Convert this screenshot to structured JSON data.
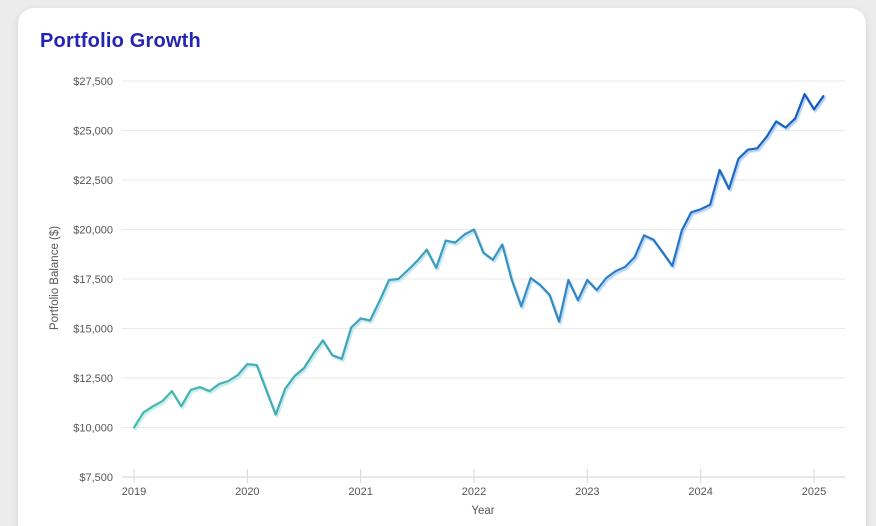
{
  "theme": {
    "page_bg": "#ececec",
    "card_bg": "#ffffff",
    "title_color": "#2525b5",
    "tick_label_color": "#555555",
    "axis_title_color": "#555555",
    "grid_color": "#e9e9e9",
    "axis_line_color": "#d2d2d2",
    "tick_mark_color": "#d8d8d8",
    "line_gradient": [
      "#47b8ac",
      "#3d9fba",
      "#2b7cc7",
      "#1257bd"
    ],
    "line_shadow_gradient": [
      "#b7eae4",
      "#aedcee",
      "#a2c9f4",
      "#9cbff7"
    ]
  },
  "chart_data": {
    "type": "line",
    "title": "Portfolio Growth",
    "xlabel": "Year",
    "ylabel": "Portfolio Balance ($)",
    "grid": true,
    "legend": false,
    "x_unit": "month",
    "x_start_label": "2019-01",
    "x_end_label": "2025-02",
    "x_tick_labels": [
      "2019",
      "2020",
      "2021",
      "2022",
      "2023",
      "2024",
      "2025"
    ],
    "months_per_tick": 12,
    "y_ticks": [
      7500,
      10000,
      12500,
      15000,
      17500,
      20000,
      22500,
      25000,
      27500
    ],
    "y_tick_labels": [
      "$7,500",
      "$10,000",
      "$12,500",
      "$15,000",
      "$17,500",
      "$20,000",
      "$22,500",
      "$25,000",
      "$27,500"
    ],
    "ylim": [
      7500,
      27500
    ],
    "series": [
      {
        "name": "Portfolio Balance",
        "points_per_year": 12,
        "values": [
          10000,
          10750,
          11070,
          11330,
          11840,
          11070,
          11900,
          12040,
          11840,
          12190,
          12350,
          12650,
          13200,
          13150,
          11900,
          10650,
          11950,
          12600,
          13000,
          13750,
          14400,
          13650,
          13470,
          15050,
          15510,
          15410,
          16400,
          17450,
          17500,
          17950,
          18420,
          18980,
          18060,
          19440,
          19340,
          19750,
          20000,
          18830,
          18470,
          19240,
          17450,
          16120,
          17550,
          17200,
          16690,
          15350,
          17450,
          16430,
          17450,
          16940,
          17550,
          17900,
          18110,
          18600,
          19700,
          19490,
          18830,
          18160,
          19950,
          20870,
          21020,
          21250,
          23010,
          22050,
          23570,
          24030,
          24100,
          24690,
          25460,
          25150,
          25600,
          26840,
          26070,
          26730
        ]
      }
    ]
  }
}
